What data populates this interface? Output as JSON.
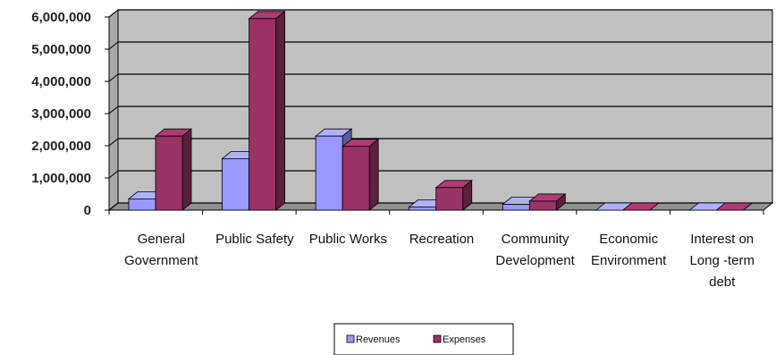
{
  "chart_data": {
    "type": "bar",
    "subtype": "3d-clustered-column",
    "categories": [
      [
        "General",
        "Government"
      ],
      [
        "Public Safety"
      ],
      [
        "Public Works"
      ],
      [
        "Recreation"
      ],
      [
        "Community",
        "Development"
      ],
      [
        "Economic",
        "Environment"
      ],
      [
        "Interest on",
        "Long -term",
        "debt"
      ]
    ],
    "series": [
      {
        "name": "Revenues",
        "color": "#9999ff",
        "values": [
          350000,
          1600000,
          2300000,
          100000,
          180000,
          0,
          0
        ]
      },
      {
        "name": "Expenses",
        "color": "#993366",
        "values": [
          2300000,
          5950000,
          1980000,
          700000,
          280000,
          0,
          0
        ]
      }
    ],
    "y_ticks": [
      "0",
      "1,000,000",
      "2,000,000",
      "3,000,000",
      "4,000,000",
      "5,000,000",
      "6,000,000"
    ],
    "ylim": [
      0,
      6000000
    ],
    "grid": true,
    "legend_position": "bottom",
    "plot_wall_color": "#c0c0c0",
    "title": "",
    "xlabel": "",
    "ylabel": ""
  }
}
